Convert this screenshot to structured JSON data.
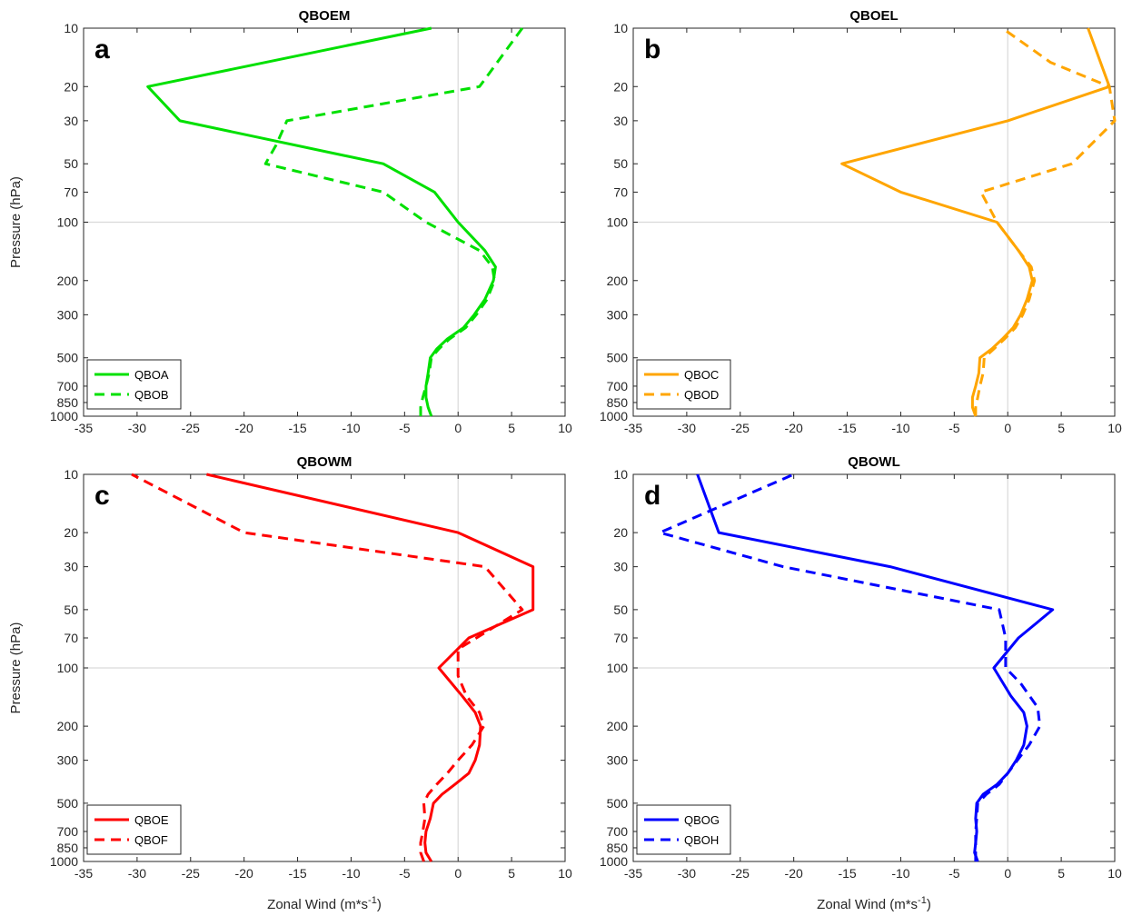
{
  "chart_data": [
    {
      "type": "line",
      "panel": "a",
      "title": "QBOEM",
      "xlabel": "",
      "ylabel": "Pressure (hPa)",
      "xlim": [
        -35,
        10
      ],
      "ylim": [
        10,
        1000
      ],
      "y_scale": "log",
      "y_inverted": true,
      "xticks": [
        -35,
        -30,
        -25,
        -20,
        -15,
        -10,
        -5,
        0,
        5,
        10
      ],
      "yticks": [
        10,
        20,
        30,
        50,
        70,
        100,
        200,
        300,
        500,
        700,
        850,
        1000
      ],
      "legend_position": "bottom-left",
      "reference_lines": {
        "x": 0,
        "y": 100
      },
      "series": [
        {
          "name": "QBOA",
          "color": "#00e000",
          "dash": "solid",
          "points": [
            [
              -2.5,
              1000
            ],
            [
              -2.8,
              900
            ],
            [
              -3.0,
              800
            ],
            [
              -3.0,
              700
            ],
            [
              -2.8,
              600
            ],
            [
              -2.6,
              500
            ],
            [
              -2,
              450
            ],
            [
              -1,
              400
            ],
            [
              0.5,
              350
            ],
            [
              1.5,
              300
            ],
            [
              2.5,
              250
            ],
            [
              3.3,
              200
            ],
            [
              3.5,
              170
            ],
            [
              2.5,
              140
            ],
            [
              0,
              100
            ],
            [
              -2.2,
              70
            ],
            [
              -7,
              50
            ],
            [
              -26,
              30
            ],
            [
              -29,
              20
            ],
            [
              -2.5,
              10
            ]
          ]
        },
        {
          "name": "QBOB",
          "color": "#00e000",
          "dash": "dashed",
          "points": [
            [
              -3.5,
              1000
            ],
            [
              -3.5,
              900
            ],
            [
              -3.3,
              800
            ],
            [
              -3.0,
              700
            ],
            [
              -2.7,
              600
            ],
            [
              -2.5,
              500
            ],
            [
              -1.8,
              450
            ],
            [
              -0.8,
              400
            ],
            [
              0.7,
              350
            ],
            [
              1.7,
              300
            ],
            [
              2.7,
              250
            ],
            [
              3.4,
              200
            ],
            [
              3.2,
              170
            ],
            [
              2.0,
              140
            ],
            [
              -3,
              100
            ],
            [
              -7,
              70
            ],
            [
              -18,
              50
            ],
            [
              -17,
              40
            ],
            [
              -16,
              30
            ],
            [
              2,
              20
            ],
            [
              6,
              10
            ]
          ]
        }
      ]
    },
    {
      "type": "line",
      "panel": "b",
      "title": "QBOEL",
      "xlabel": "",
      "ylabel": "",
      "xlim": [
        -35,
        10
      ],
      "ylim": [
        10,
        1000
      ],
      "y_scale": "log",
      "y_inverted": true,
      "xticks": [
        -35,
        -30,
        -25,
        -20,
        -15,
        -10,
        -5,
        0,
        5,
        10
      ],
      "yticks": [
        10,
        20,
        30,
        50,
        70,
        100,
        200,
        300,
        500,
        700,
        850,
        1000
      ],
      "legend_position": "bottom-left",
      "reference_lines": {
        "x": 0,
        "y": 100
      },
      "series": [
        {
          "name": "QBOC",
          "color": "#ffa500",
          "dash": "solid",
          "points": [
            [
              -3.0,
              1000
            ],
            [
              -3.3,
              900
            ],
            [
              -3.3,
              800
            ],
            [
              -3.0,
              700
            ],
            [
              -2.7,
              600
            ],
            [
              -2.6,
              500
            ],
            [
              -1.5,
              450
            ],
            [
              -0.5,
              400
            ],
            [
              0.5,
              350
            ],
            [
              1.2,
              300
            ],
            [
              1.8,
              250
            ],
            [
              2.3,
              200
            ],
            [
              2.0,
              170
            ],
            [
              1.0,
              140
            ],
            [
              -1,
              100
            ],
            [
              -10,
              70
            ],
            [
              -15.5,
              50
            ],
            [
              0,
              30
            ],
            [
              9.5,
              20
            ],
            [
              7.5,
              10
            ]
          ]
        },
        {
          "name": "QBOD",
          "color": "#ffa500",
          "dash": "dashed",
          "points": [
            [
              -3.0,
              1000
            ],
            [
              -3.0,
              900
            ],
            [
              -2.8,
              800
            ],
            [
              -2.6,
              700
            ],
            [
              -2.3,
              600
            ],
            [
              -2.2,
              500
            ],
            [
              -1.3,
              450
            ],
            [
              -0.3,
              400
            ],
            [
              0.7,
              350
            ],
            [
              1.4,
              300
            ],
            [
              2.0,
              250
            ],
            [
              2.5,
              200
            ],
            [
              2.2,
              170
            ],
            [
              1.0,
              140
            ],
            [
              -1,
              100
            ],
            [
              -2.5,
              70
            ],
            [
              6,
              50
            ],
            [
              10,
              30
            ],
            [
              9.5,
              20
            ],
            [
              4,
              15
            ],
            [
              -0.5,
              10
            ]
          ]
        }
      ]
    },
    {
      "type": "line",
      "panel": "c",
      "title": "QBOWM",
      "xlabel": "Zonal Wind (m*s⁻¹)",
      "ylabel": "Pressure (hPa)",
      "xlim": [
        -35,
        10
      ],
      "ylim": [
        10,
        1000
      ],
      "y_scale": "log",
      "y_inverted": true,
      "xticks": [
        -35,
        -30,
        -25,
        -20,
        -15,
        -10,
        -5,
        0,
        5,
        10
      ],
      "yticks": [
        10,
        20,
        30,
        50,
        70,
        100,
        200,
        300,
        500,
        700,
        850,
        1000
      ],
      "legend_position": "bottom-left",
      "reference_lines": {
        "x": 0,
        "y": 100
      },
      "series": [
        {
          "name": "QBOE",
          "color": "#ff0000",
          "dash": "solid",
          "points": [
            [
              -2.5,
              1000
            ],
            [
              -3.0,
              900
            ],
            [
              -3.1,
              800
            ],
            [
              -3.0,
              700
            ],
            [
              -2.6,
              600
            ],
            [
              -2.3,
              500
            ],
            [
              -1.5,
              450
            ],
            [
              -0.3,
              400
            ],
            [
              1.0,
              350
            ],
            [
              1.6,
              300
            ],
            [
              2.0,
              250
            ],
            [
              2.1,
              200
            ],
            [
              1.6,
              170
            ],
            [
              0.4,
              140
            ],
            [
              -1.8,
              100
            ],
            [
              1,
              70
            ],
            [
              7,
              50
            ],
            [
              7,
              30
            ],
            [
              0,
              20
            ],
            [
              -23.5,
              10
            ]
          ]
        },
        {
          "name": "QBOF",
          "color": "#ff0000",
          "dash": "dashed",
          "points": [
            [
              -3.2,
              1000
            ],
            [
              -3.5,
              900
            ],
            [
              -3.5,
              800
            ],
            [
              -3.3,
              700
            ],
            [
              -3.1,
              600
            ],
            [
              -3.2,
              500
            ],
            [
              -2.8,
              450
            ],
            [
              -2,
              400
            ],
            [
              -1,
              350
            ],
            [
              0,
              300
            ],
            [
              1.3,
              250
            ],
            [
              2.4,
              200
            ],
            [
              2.0,
              170
            ],
            [
              0.8,
              140
            ],
            [
              0,
              110
            ],
            [
              0,
              80
            ],
            [
              6,
              50
            ],
            [
              2.5,
              30
            ],
            [
              -20,
              20
            ],
            [
              -30.5,
              10
            ]
          ]
        }
      ]
    },
    {
      "type": "line",
      "panel": "d",
      "title": "QBOWL",
      "xlabel": "Zonal Wind (m*s⁻¹)",
      "ylabel": "",
      "xlim": [
        -35,
        10
      ],
      "ylim": [
        10,
        1000
      ],
      "y_scale": "log",
      "y_inverted": true,
      "xticks": [
        -35,
        -30,
        -25,
        -20,
        -15,
        -10,
        -5,
        0,
        5,
        10
      ],
      "yticks": [
        10,
        20,
        30,
        50,
        70,
        100,
        200,
        300,
        500,
        700,
        850,
        1000
      ],
      "legend_position": "bottom-left",
      "reference_lines": {
        "x": 0,
        "y": 100
      },
      "series": [
        {
          "name": "QBOG",
          "color": "#0000ff",
          "dash": "solid",
          "points": [
            [
              -2.8,
              1000
            ],
            [
              -3.1,
              900
            ],
            [
              -3.0,
              800
            ],
            [
              -2.9,
              700
            ],
            [
              -3.0,
              600
            ],
            [
              -2.9,
              500
            ],
            [
              -2.3,
              450
            ],
            [
              -1,
              400
            ],
            [
              0,
              350
            ],
            [
              0.8,
              300
            ],
            [
              1.5,
              250
            ],
            [
              1.8,
              200
            ],
            [
              1.5,
              170
            ],
            [
              0.3,
              140
            ],
            [
              -1.3,
              100
            ],
            [
              1,
              70
            ],
            [
              4.2,
              50
            ],
            [
              -11,
              30
            ],
            [
              -27,
              20
            ],
            [
              -29,
              10
            ]
          ]
        },
        {
          "name": "QBOH",
          "color": "#0000ff",
          "dash": "dashed",
          "points": [
            [
              -3.0,
              1000
            ],
            [
              -3.0,
              900
            ],
            [
              -3.0,
              800
            ],
            [
              -3.0,
              700
            ],
            [
              -2.9,
              600
            ],
            [
              -2.8,
              500
            ],
            [
              -2,
              450
            ],
            [
              -0.8,
              400
            ],
            [
              0,
              350
            ],
            [
              0.9,
              300
            ],
            [
              2.0,
              250
            ],
            [
              3.0,
              200
            ],
            [
              2.8,
              160
            ],
            [
              1.2,
              120
            ],
            [
              -0.2,
              100
            ],
            [
              -0.2,
              70
            ],
            [
              -0.8,
              50
            ],
            [
              -21,
              30
            ],
            [
              -32.5,
              20
            ],
            [
              -20,
              10
            ]
          ]
        }
      ]
    }
  ]
}
